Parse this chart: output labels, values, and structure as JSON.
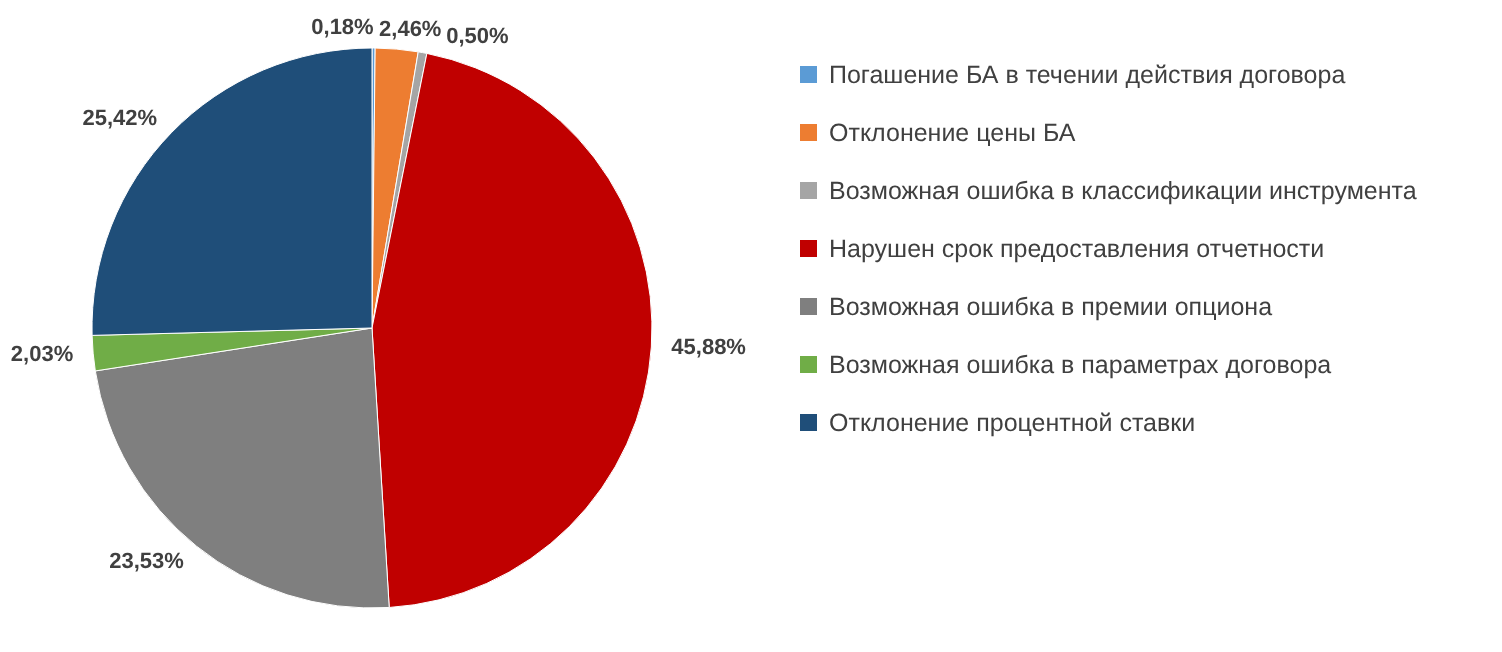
{
  "chart_data": {
    "type": "pie",
    "categories": [
      "Погашение БА в течении действия договора",
      "Отклонение цены БА",
      "Возможная ошибка в классификации инструмента",
      "Нарушен срок предоставления отчетности",
      "Возможная ошибка в премии опциона",
      "Возможная ошибка в параметрах договора",
      "Отклонение процентной ставки"
    ],
    "values": [
      0.18,
      2.46,
      0.5,
      45.88,
      23.53,
      2.03,
      25.42
    ],
    "colors": [
      "#5b9bd5",
      "#ed7d31",
      "#a5a5a5",
      "#c00000",
      "#7f7f7f",
      "#70ad47",
      "#1f4e79"
    ],
    "value_labels": [
      "0,18%",
      "2,46%",
      "0,50%",
      "45,88%",
      "23,53%",
      "2,03%",
      "25,42%"
    ],
    "legend": "right"
  }
}
